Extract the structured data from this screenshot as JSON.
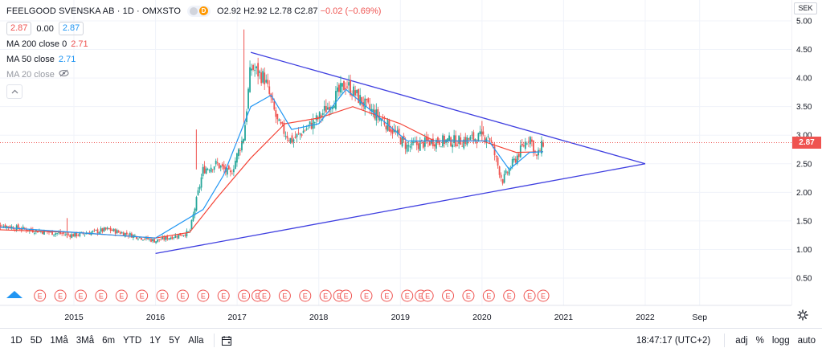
{
  "legend": {
    "title": "FEELGOOD SVENSKA AB · 1D · OMXSTO",
    "status_letter": "D",
    "ohlc": {
      "o_label": "O",
      "o": "2.92",
      "h_label": "H",
      "h": "2.92",
      "l_label": "L",
      "l": "2.78",
      "c_label": "C",
      "c": "2.87",
      "change": "−0.02 (−0.69%)"
    },
    "bid": "2.87",
    "spread": "0.00",
    "ask": "2.87",
    "ma200": {
      "label": "MA 200 close 0",
      "value": "2.71"
    },
    "ma50": {
      "label": "MA 50 close",
      "value": "2.71"
    },
    "ma20": {
      "label": "MA 20 close"
    }
  },
  "price_axis": {
    "currency": "SEK",
    "ticks": [
      "5.00",
      "4.50",
      "4.00",
      "3.50",
      "3.00",
      "2.50",
      "2.00",
      "1.50",
      "1.00",
      "0.50"
    ],
    "last_price": "2.87"
  },
  "time_axis": {
    "ticks": [
      "2015",
      "2016",
      "2017",
      "2018",
      "2019",
      "2020",
      "2021",
      "2022",
      "Sep"
    ]
  },
  "earnings_marker": "E",
  "toolbar": {
    "ranges": [
      "1D",
      "5D",
      "1Må",
      "3Må",
      "6m",
      "YTD",
      "1Y",
      "5Y",
      "Alla"
    ],
    "time": "18:47:17 (UTC+2)",
    "adj": "adj",
    "percent": "%",
    "log": "logg",
    "auto": "auto"
  },
  "colors": {
    "up": "#26a69a",
    "down": "#ef5350",
    "ma200": "#f44336",
    "ma50": "#2196f3",
    "trendline": "#3f3fe0",
    "price_line": "#ef5350"
  },
  "chart_data": {
    "type": "candlestick",
    "x_range": [
      "2014-01",
      "2022-10"
    ],
    "ylim": [
      0.3,
      5.1
    ],
    "y_scale": "linear",
    "close_series": [
      [
        "2014-01",
        1.45
      ],
      [
        "2014-06",
        1.35
      ],
      [
        "2015-01",
        1.25
      ],
      [
        "2015-06",
        1.35
      ],
      [
        "2016-01",
        1.15
      ],
      [
        "2016-06",
        1.3
      ],
      [
        "2016-08",
        2.4
      ],
      [
        "2016-10",
        2.5
      ],
      [
        "2016-12",
        2.3
      ],
      [
        "2017-02",
        3.0
      ],
      [
        "2017-03",
        4.2
      ],
      [
        "2017-05",
        4.0
      ],
      [
        "2017-07",
        3.2
      ],
      [
        "2017-09",
        2.9
      ],
      [
        "2018-01",
        3.3
      ],
      [
        "2018-05",
        3.9
      ],
      [
        "2018-08",
        3.5
      ],
      [
        "2018-11",
        3.2
      ],
      [
        "2019-02",
        2.8
      ],
      [
        "2019-06",
        2.9
      ],
      [
        "2019-10",
        2.9
      ],
      [
        "2020-02",
        3.0
      ],
      [
        "2020-04",
        2.2
      ],
      [
        "2020-06",
        2.6
      ],
      [
        "2020-08",
        3.0
      ],
      [
        "2020-09",
        2.6
      ],
      [
        "2020-10",
        2.87
      ]
    ],
    "ma50_series": [
      [
        "2014-01",
        1.4
      ],
      [
        "2015-01",
        1.3
      ],
      [
        "2016-01",
        1.2
      ],
      [
        "2016-08",
        1.7
      ],
      [
        "2016-11",
        2.3
      ],
      [
        "2017-03",
        3.5
      ],
      [
        "2017-06",
        3.7
      ],
      [
        "2017-09",
        3.1
      ],
      [
        "2018-01",
        3.2
      ],
      [
        "2018-05",
        3.8
      ],
      [
        "2018-09",
        3.4
      ],
      [
        "2019-02",
        2.9
      ],
      [
        "2019-08",
        2.9
      ],
      [
        "2020-02",
        2.9
      ],
      [
        "2020-05",
        2.4
      ],
      [
        "2020-08",
        2.7
      ],
      [
        "2020-10",
        2.71
      ]
    ],
    "ma200_series": [
      [
        "2014-01",
        1.35
      ],
      [
        "2015-01",
        1.3
      ],
      [
        "2016-01",
        1.2
      ],
      [
        "2016-06",
        1.3
      ],
      [
        "2016-10",
        1.9
      ],
      [
        "2017-03",
        2.6
      ],
      [
        "2017-08",
        3.2
      ],
      [
        "2018-01",
        3.3
      ],
      [
        "2018-06",
        3.5
      ],
      [
        "2019-01",
        3.2
      ],
      [
        "2019-06",
        2.9
      ],
      [
        "2020-01",
        2.9
      ],
      [
        "2020-06",
        2.7
      ],
      [
        "2020-10",
        2.71
      ]
    ],
    "trendlines": [
      {
        "name": "upper",
        "points": [
          [
            "2017-03",
            4.45
          ],
          [
            "2022-01",
            2.5
          ]
        ]
      },
      {
        "name": "lower",
        "points": [
          [
            "2016-01",
            0.93
          ],
          [
            "2022-01",
            2.5
          ]
        ]
      }
    ],
    "earnings_dates": [
      "2014-02",
      "2014-05",
      "2014-08",
      "2014-11",
      "2015-02",
      "2015-05",
      "2015-08",
      "2015-11",
      "2016-02",
      "2016-05",
      "2016-08",
      "2016-11",
      "2017-02",
      "2017-04",
      "2017-05",
      "2017-08",
      "2017-11",
      "2018-02",
      "2018-04",
      "2018-05",
      "2018-08",
      "2018-11",
      "2019-02",
      "2019-04",
      "2019-05",
      "2019-08",
      "2019-11",
      "2020-02",
      "2020-05",
      "2020-08",
      "2020-10"
    ]
  }
}
